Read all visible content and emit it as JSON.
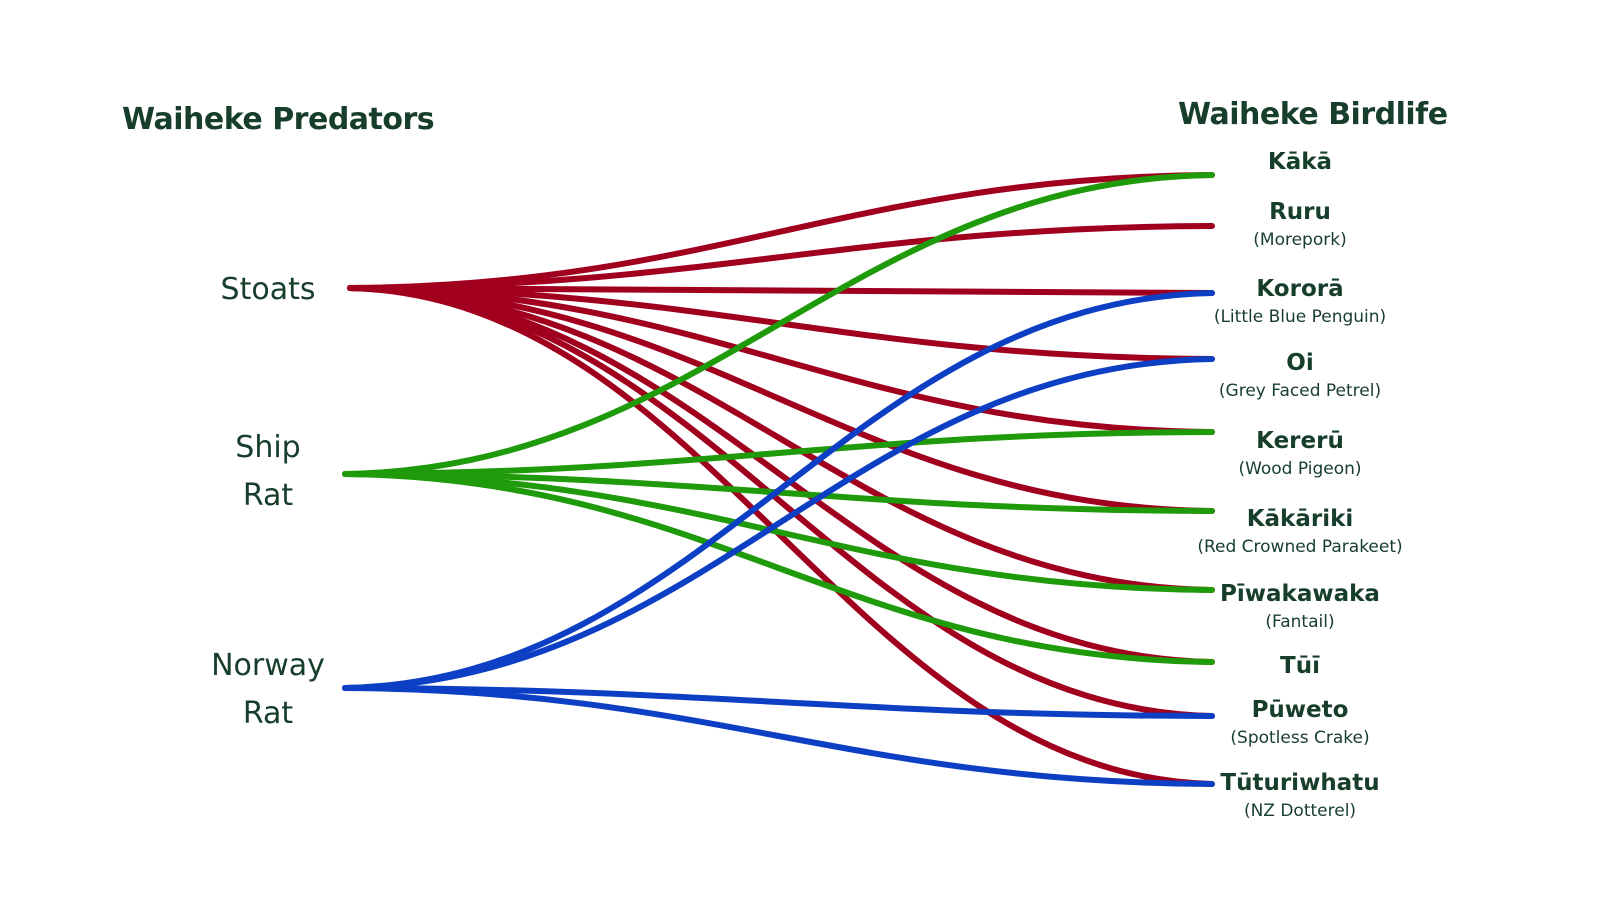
{
  "titles": {
    "left": "Waiheke Predators",
    "right": "Waiheke Birdlife"
  },
  "colors": {
    "text": "#173d2b",
    "stoats": "#a0001e",
    "ship_rat": "#1e9a0a",
    "norway_rat": "#0c3fc4"
  },
  "predators": [
    {
      "id": "stoats",
      "lines": [
        "Stoats"
      ]
    },
    {
      "id": "ship-rat",
      "lines": [
        "Ship",
        "Rat"
      ]
    },
    {
      "id": "norway-rat",
      "lines": [
        "Norway",
        "Rat"
      ]
    }
  ],
  "birds": [
    {
      "id": "kaka",
      "name": "Kākā",
      "sub": ""
    },
    {
      "id": "ruru",
      "name": "Ruru",
      "sub": "(Morepork)"
    },
    {
      "id": "korora",
      "name": "Kororā",
      "sub": "(Little Blue Penguin)"
    },
    {
      "id": "oi",
      "name": "Oi",
      "sub": "(Grey Faced Petrel)"
    },
    {
      "id": "kereru",
      "name": "Kererū",
      "sub": "(Wood Pigeon)"
    },
    {
      "id": "kakariki",
      "name": "Kākāriki",
      "sub": "(Red Crowned Parakeet)"
    },
    {
      "id": "piwakawaka",
      "name": "Pīwakawaka",
      "sub": "(Fantail)"
    },
    {
      "id": "tui",
      "name": "Tūī",
      "sub": ""
    },
    {
      "id": "puweto",
      "name": "Pūweto",
      "sub": "(Spotless Crake)"
    },
    {
      "id": "tuturiwhatu",
      "name": "Tūturiwhatu",
      "sub": "(NZ Dotterel)"
    }
  ],
  "links": [
    {
      "from": "stoats",
      "to": "kaka"
    },
    {
      "from": "stoats",
      "to": "ruru"
    },
    {
      "from": "stoats",
      "to": "korora"
    },
    {
      "from": "stoats",
      "to": "oi"
    },
    {
      "from": "stoats",
      "to": "kereru"
    },
    {
      "from": "stoats",
      "to": "kakariki"
    },
    {
      "from": "stoats",
      "to": "piwakawaka"
    },
    {
      "from": "stoats",
      "to": "tui"
    },
    {
      "from": "stoats",
      "to": "puweto"
    },
    {
      "from": "stoats",
      "to": "tuturiwhatu"
    },
    {
      "from": "ship-rat",
      "to": "kaka"
    },
    {
      "from": "ship-rat",
      "to": "kereru"
    },
    {
      "from": "ship-rat",
      "to": "kakariki"
    },
    {
      "from": "ship-rat",
      "to": "piwakawaka"
    },
    {
      "from": "ship-rat",
      "to": "tui"
    },
    {
      "from": "norway-rat",
      "to": "korora"
    },
    {
      "from": "norway-rat",
      "to": "oi"
    },
    {
      "from": "norway-rat",
      "to": "puweto"
    },
    {
      "from": "norway-rat",
      "to": "tuturiwhatu"
    }
  ]
}
